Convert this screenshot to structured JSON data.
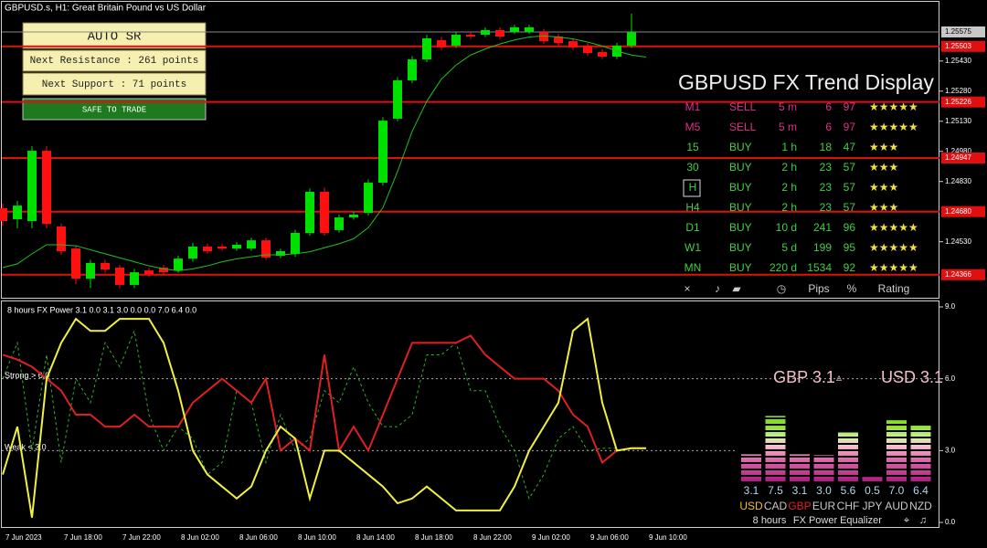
{
  "header": {
    "title": "GBPUSD.s, H1:  Great Britain Pound vs US Dollar"
  },
  "panel": {
    "title": "AUTO SR",
    "resistance": "Next Resistance : 261 points",
    "support": "Next Support : 71 points",
    "status": "SAFE TO TRADE"
  },
  "trend": {
    "title": "GBPUSD FX Trend Display",
    "rows": [
      [
        "M1",
        "SELL",
        "5 m",
        "6",
        "97",
        "★★★★★"
      ],
      [
        "M5",
        "SELL",
        "5 m",
        "6",
        "97",
        "★★★★★"
      ],
      [
        "15",
        "BUY",
        "1 h",
        "18",
        "47",
        "★★★"
      ],
      [
        "30",
        "BUY",
        "2 h",
        "23",
        "57",
        "★★★"
      ],
      [
        "H",
        "BUY",
        "2 h",
        "23",
        "57",
        "★★★"
      ],
      [
        "H4",
        "BUY",
        "2 h",
        "23",
        "57",
        "★★★"
      ],
      [
        "D1",
        "BUY",
        "10 d",
        "241",
        "96",
        "★★★★★"
      ],
      [
        "W1",
        "BUY",
        "5 d",
        "199",
        "95",
        "★★★★★"
      ],
      [
        "MN",
        "BUY",
        "220 d",
        "1534",
        "92",
        "★★★★★"
      ]
    ],
    "sell_color": "#e0308a",
    "buy_color": "#40d040",
    "star_color": "#f0e040",
    "footer": [
      "×",
      "♪",
      "▰",
      "◷",
      "Pips",
      "%",
      "Rating"
    ]
  },
  "chart_data": [
    {
      "type": "candlestick",
      "up_color": "#00e000",
      "down_color": "#ff1010",
      "categories": [
        "7 Jun 2023",
        null,
        null,
        null,
        "7 Jun 18:00",
        null,
        null,
        null,
        "7 Jun 22:00",
        null,
        null,
        null,
        "8 Jun 02:00",
        null,
        null,
        null,
        "8 Jun 06:00",
        null,
        null,
        null,
        "8 Jun 10:00",
        null,
        null,
        null,
        "8 Jun 14:00",
        null,
        null,
        null,
        "8 Jun 18:00",
        null,
        null,
        null,
        "8 Jun 22:00",
        null,
        null,
        null,
        "9 Jun 02:00",
        null,
        null,
        null,
        "9 Jun 06:00",
        null,
        null,
        null,
        "9 Jun 10:00"
      ],
      "open": [
        1.24697,
        1.24642,
        1.24633,
        1.24983,
        1.24606,
        1.24496,
        1.24346,
        1.24424,
        1.24401,
        1.24315,
        1.24387,
        1.24401,
        1.24387,
        1.24446,
        1.24506,
        1.24506,
        1.24496,
        1.24496,
        1.24537,
        1.2446,
        1.24469,
        1.24574,
        1.24779,
        1.24588,
        1.24651,
        1.24674,
        1.24824,
        1.25143,
        1.25334,
        1.25438,
        1.25534,
        1.25507,
        1.25561,
        1.25561,
        1.25584,
        1.25575,
        1.25575,
        1.25575,
        1.25552,
        1.25529,
        1.25507,
        1.25475,
        1.25452,
        1.25507,
        null
      ],
      "high": [
        1.2472,
        1.24733,
        1.25006,
        1.25006,
        1.2462,
        1.2451,
        1.2444,
        1.2444,
        1.24415,
        1.24395,
        1.244,
        1.24415,
        1.2446,
        1.24525,
        1.2452,
        1.24518,
        1.24528,
        1.2455,
        1.2455,
        1.24495,
        1.2459,
        1.24795,
        1.248,
        1.24665,
        1.2468,
        1.2484,
        1.2515,
        1.2535,
        1.25455,
        1.2556,
        1.2555,
        1.25575,
        1.25575,
        1.25598,
        1.25598,
        1.2561,
        1.2561,
        1.2559,
        1.25565,
        1.25545,
        1.2552,
        1.2549,
        1.2552,
        1.25666,
        null
      ],
      "low": [
        1.2461,
        1.24597,
        1.24597,
        1.24597,
        1.24465,
        1.2432,
        1.243,
        1.24375,
        1.243,
        1.243,
        1.24355,
        1.24365,
        1.24375,
        1.2443,
        1.2447,
        1.24485,
        1.24485,
        1.24485,
        1.2444,
        1.24448,
        1.24455,
        1.2456,
        1.2456,
        1.24575,
        1.2464,
        1.2466,
        1.2481,
        1.2513,
        1.2532,
        1.25425,
        1.25485,
        1.25495,
        1.2554,
        1.2555,
        1.2554,
        1.25565,
        1.25565,
        1.25515,
        1.25505,
        1.25485,
        1.25455,
        1.2544,
        1.2544,
        1.25495,
        null
      ],
      "close": [
        1.24633,
        1.2471,
        1.24983,
        1.24619,
        1.24483,
        1.24346,
        1.24424,
        1.24392,
        1.24315,
        1.24378,
        1.24369,
        1.24378,
        1.24446,
        1.24506,
        1.24483,
        1.24496,
        1.24515,
        1.24537,
        1.24451,
        1.24483,
        1.24574,
        1.24779,
        1.24574,
        1.24651,
        1.24665,
        1.24824,
        1.25133,
        1.25334,
        1.25438,
        1.25543,
        1.25498,
        1.25561,
        1.25552,
        1.25584,
        1.25552,
        1.25598,
        1.25598,
        1.25529,
        1.2552,
        1.25498,
        1.2547,
        1.25452,
        1.25507,
        1.25575,
        null
      ],
      "ma": {
        "color": "#20c020",
        "values": [
          1.24401,
          1.2442,
          1.2447,
          1.24515,
          1.24515,
          1.2451,
          1.2449,
          1.2447,
          1.2445,
          1.2443,
          1.2441,
          1.24395,
          1.24385,
          1.24395,
          1.2441,
          1.2443,
          1.24445,
          1.24455,
          1.24465,
          1.24465,
          1.2447,
          1.2448,
          1.245,
          1.2452,
          1.24545,
          1.246,
          1.247,
          1.2488,
          1.2508,
          1.2523,
          1.2534,
          1.2541,
          1.2546,
          1.2549,
          1.25515,
          1.25535,
          1.2555,
          1.25555,
          1.2555,
          1.2554,
          1.25525,
          1.25505,
          1.2548,
          1.2546,
          1.2545
        ]
      },
      "ylim": [
        1.24251,
        1.25725
      ],
      "yticks": [
        {
          "value": 1.2543,
          "label": "1.25430"
        },
        {
          "value": 1.2528,
          "label": "1.25280"
        },
        {
          "value": 1.2513,
          "label": "1.25130"
        },
        {
          "value": 1.2498,
          "label": "1.24980"
        },
        {
          "value": 1.2483,
          "label": "1.24830"
        },
        {
          "value": 1.2453,
          "label": "1.24530"
        }
      ],
      "levels": [
        1.25503,
        1.25226,
        1.24947,
        {
          "value": 1.2468,
          "label": "1.24680"
        },
        1.24366
      ],
      "level_color": "#e01010",
      "current": 1.25575
    },
    {
      "type": "line",
      "title": "8 hours FX Power 3.1 0.0 3.1 3.0 0.0 0.0 7.0 6.4 0.0",
      "ylim": [
        0,
        9
      ],
      "yticks": [
        {
          "value": 9,
          "label": "9.0"
        },
        {
          "value": 6,
          "label": "6.0"
        },
        {
          "value": 3,
          "label": "3.0"
        },
        {
          "value": 0,
          "label": "0.0"
        }
      ],
      "levels": [
        {
          "value": 6,
          "label": "Strong > 6.0"
        },
        {
          "value": 3,
          "label": "Weak < 3.0"
        }
      ],
      "series": [
        {
          "color": "#30b030",
          "dashed": true,
          "values": [
            6.0,
            7.5,
            3.0,
            7.0,
            2.5,
            6.0,
            5.0,
            7.5,
            6.5,
            8.0,
            4.5,
            3.0,
            4.0,
            3.5,
            2.0,
            2.5,
            5.5,
            5.0,
            2.5,
            4.5,
            3.0,
            3.5,
            5.5,
            5.0,
            6.5,
            5.0,
            4.0,
            4.0,
            4.5,
            7.0,
            7.0,
            7.5,
            5.5,
            5.5,
            4.0,
            3.0,
            1.0,
            2.0,
            3.5,
            4.0,
            3.0,
            3.1,
            3.1,
            null,
            null
          ]
        },
        {
          "color": "#e02020",
          "values": [
            7.0,
            6.8,
            6.5,
            6.0,
            5.5,
            4.5,
            4.5,
            4.0,
            4.0,
            4.5,
            4.0,
            4.0,
            4.0,
            5.0,
            5.5,
            6.0,
            5.5,
            5.0,
            6.0,
            3.0,
            3.5,
            3.0,
            7.0,
            3.0,
            4.0,
            3.0,
            4.5,
            6.0,
            7.5,
            7.5,
            7.5,
            7.5,
            7.8,
            7.0,
            6.5,
            6.0,
            6.0,
            6.0,
            5.5,
            4.5,
            4.0,
            2.5,
            3.0,
            3.1,
            3.1
          ]
        },
        {
          "color": "#f0f040",
          "values": [
            2.0,
            4.0,
            0.2,
            6.0,
            7.5,
            8.5,
            8.0,
            8.0,
            8.5,
            8.5,
            8.5,
            7.5,
            5.5,
            3.0,
            2.0,
            1.5,
            1.0,
            1.5,
            3.0,
            4.0,
            3.5,
            1.0,
            3.0,
            3.0,
            2.5,
            2.0,
            1.5,
            0.8,
            1.0,
            1.5,
            1.0,
            0.5,
            0.5,
            0.5,
            0.5,
            1.5,
            3.0,
            4.0,
            5.0,
            8.0,
            8.5,
            5.0,
            3.0,
            3.1,
            3.1
          ]
        }
      ]
    },
    {
      "type": "equalizer",
      "headline": [
        "GBP 3.1",
        "▵",
        "USD 3.1"
      ],
      "categories": [
        "USD",
        "CAD",
        "GBP",
        "EUR",
        "CHF",
        "JPY",
        "AUD",
        "NZD"
      ],
      "label_colors": [
        "#f0c020",
        "#c8c8c8",
        "#e02020",
        "#c8c8c8",
        "#c8c8c8",
        "#c8c8c8",
        "#c8c8c8",
        "#c8c8c8"
      ],
      "values": [
        3.1,
        7.5,
        3.1,
        3.0,
        5.6,
        0.5,
        7.0,
        6.4
      ],
      "value_labels": [
        "3.1",
        "7.5",
        "3.1",
        "3.0",
        "5.6",
        "0.5",
        "7.0",
        "6.4"
      ],
      "ylim": [
        0,
        9
      ],
      "footer": [
        "8 hours",
        "FX Power",
        "Equalizer",
        "⌖",
        "♫"
      ]
    }
  ]
}
